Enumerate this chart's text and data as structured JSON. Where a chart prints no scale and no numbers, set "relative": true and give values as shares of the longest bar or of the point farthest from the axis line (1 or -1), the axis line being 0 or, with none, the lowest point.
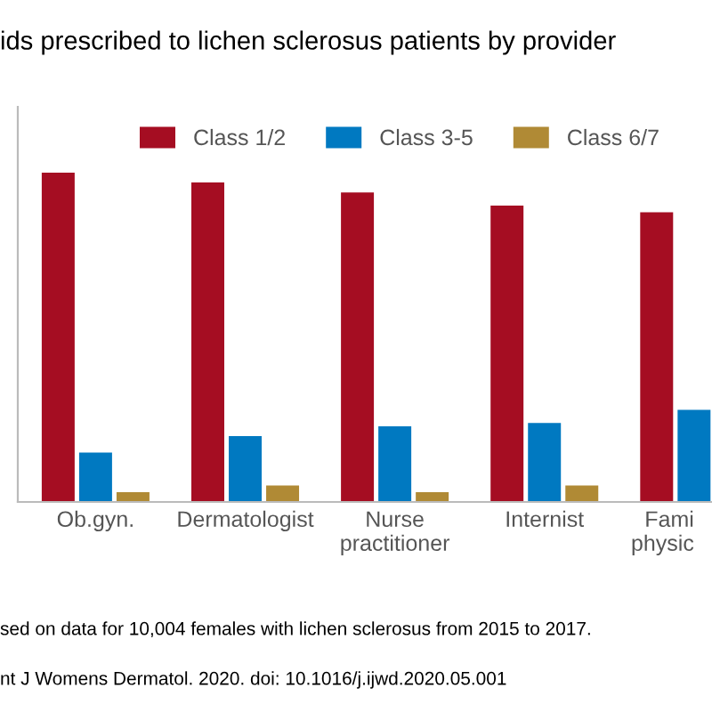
{
  "chart_data": {
    "type": "bar",
    "title": "ids prescribed to lichen sclerosus patients by provider",
    "relative": true,
    "categories": [
      "Ob.gyn.",
      "Dermatologist",
      "Nurse\npractitioner",
      "Internist",
      "Fami\nphysic"
    ],
    "series": [
      {
        "name": "Class 1/2",
        "color": "#a50d22",
        "values": [
          1,
          0.97,
          0.94,
          0.9,
          0.88
        ]
      },
      {
        "name": "Class 3-5",
        "color": "#0079c1",
        "values": [
          0.15,
          0.2,
          0.23,
          0.24,
          0.28
        ]
      },
      {
        "name": "Class 6/7",
        "color": "#b08a35",
        "values": [
          0.03,
          0.05,
          0.03,
          0.05,
          null
        ]
      }
    ],
    "legend": "top",
    "annotations": [
      "sed on data for 10,004 females with lichen sclerosus from 2015 to 2017.",
      "nt J Womens Dermatol. 2020. doi: 10.1016/j.ijwd.2020.05.001"
    ]
  }
}
